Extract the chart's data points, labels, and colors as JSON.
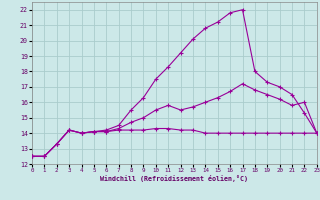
{
  "bg_color": "#cce8e8",
  "grid_color": "#aacccc",
  "line_color": "#990099",
  "xlabel": "Windchill (Refroidissement éolien,°C)",
  "xlim": [
    0,
    23
  ],
  "ylim": [
    12,
    22.5
  ],
  "yticks": [
    12,
    13,
    14,
    15,
    16,
    17,
    18,
    19,
    20,
    21,
    22
  ],
  "xticks": [
    0,
    1,
    2,
    3,
    4,
    5,
    6,
    7,
    8,
    9,
    10,
    11,
    12,
    13,
    14,
    15,
    16,
    17,
    18,
    19,
    20,
    21,
    22,
    23
  ],
  "s1x": [
    0,
    1,
    2,
    3,
    4,
    5,
    6,
    7,
    8,
    9,
    10,
    11,
    12,
    13,
    14,
    15,
    16,
    17,
    18,
    19,
    20,
    21,
    22,
    23
  ],
  "s1y": [
    12.5,
    12.5,
    13.3,
    14.2,
    14.0,
    14.1,
    14.1,
    14.2,
    14.2,
    14.2,
    14.3,
    14.3,
    14.2,
    14.2,
    14.0,
    14.0,
    14.0,
    14.0,
    14.0,
    14.0,
    14.0,
    14.0,
    14.0,
    14.0
  ],
  "s2x": [
    0,
    1,
    2,
    3,
    4,
    5,
    6,
    7,
    8,
    9,
    10,
    11,
    12,
    13,
    14,
    15,
    16,
    17,
    18,
    19,
    20,
    21,
    22,
    23
  ],
  "s2y": [
    12.5,
    12.5,
    13.3,
    14.2,
    14.0,
    14.1,
    14.1,
    14.3,
    14.7,
    15.0,
    15.5,
    15.8,
    15.5,
    15.7,
    16.0,
    16.3,
    16.7,
    17.2,
    16.8,
    16.5,
    16.2,
    15.8,
    16.0,
    14.0
  ],
  "s3x": [
    0,
    1,
    2,
    3,
    4,
    5,
    6,
    7,
    8,
    9,
    10,
    11,
    12,
    13,
    14,
    15,
    16,
    17,
    18,
    19,
    20,
    21,
    22,
    23
  ],
  "s3y": [
    12.5,
    12.5,
    13.3,
    14.2,
    14.0,
    14.1,
    14.2,
    14.5,
    15.5,
    16.3,
    17.5,
    18.3,
    19.2,
    20.1,
    20.8,
    21.2,
    21.8,
    22.0,
    18.0,
    17.3,
    17.0,
    16.5,
    15.3,
    14.0
  ]
}
